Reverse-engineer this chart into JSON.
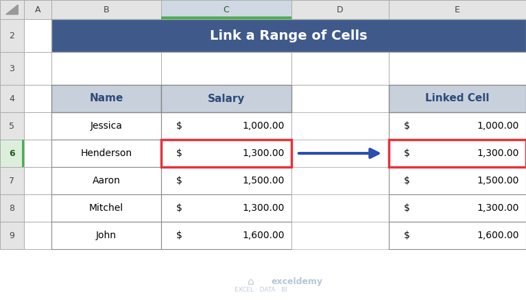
{
  "title": "Link a Range of Cells",
  "title_bg": "#3F5A8A",
  "title_fg": "#FFFFFF",
  "col_header_bg": "#C8D0DC",
  "col_header_fg": "#2E4A7A",
  "row_bg": "#FFFFFF",
  "highlight_row": 1,
  "highlight_color": "#E8303A",
  "arrow_color": "#2B4EAF",
  "names": [
    "Jessica",
    "Henderson",
    "Aaron",
    "Mitchel",
    "John"
  ],
  "salary_vals": [
    "1,000.00",
    "1,300.00",
    "1,500.00",
    "1,300.00",
    "1,600.00"
  ],
  "linked_vals": [
    "1,000.00",
    "1,300.00",
    "1,500.00",
    "1,300.00",
    "1,600.00"
  ],
  "grid_color": "#AAAAAA",
  "excel_header_bg": "#E4E4E4",
  "excel_header_fg": "#444444",
  "selected_col_header_bg": "#D0D8E4",
  "selected_col_header_fg": "#1F5C1F",
  "selected_row_header_bg": "#DDEEDD",
  "selected_row_header_fg": "#1F5C1F",
  "col_labels": [
    "A",
    "B",
    "C",
    "D",
    "E"
  ],
  "row_labels": [
    "2",
    "3",
    "4",
    "5",
    "6",
    "7",
    "8",
    "9"
  ],
  "watermark_color": "#A8BDD0",
  "fig_bg": "#FFFFFF",
  "fig_w": 7.67,
  "fig_h": 4.5,
  "dpi": 100
}
